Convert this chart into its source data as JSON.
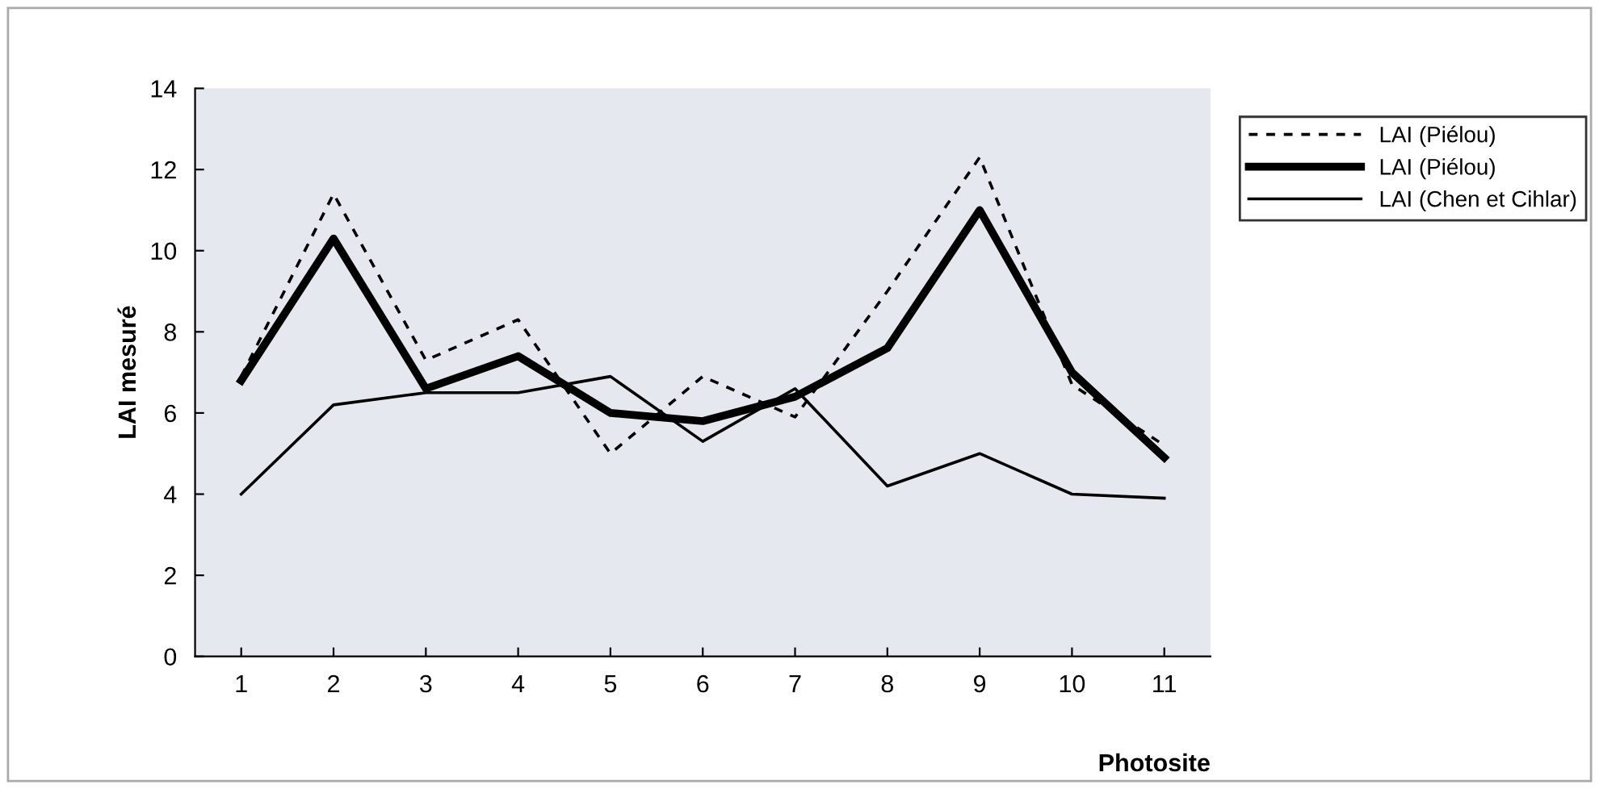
{
  "chart_data": {
    "type": "line",
    "xlabel": "Photosite",
    "ylabel": "LAI mesuré",
    "categories": [
      "1",
      "2",
      "3",
      "4",
      "5",
      "6",
      "7",
      "8",
      "9",
      "10",
      "11"
    ],
    "series": [
      {
        "name": "LAI (Piélou)",
        "color": "#000000",
        "line_style": "dashed",
        "values": [
          6.9,
          11.4,
          7.3,
          8.3,
          5.0,
          6.9,
          5.9,
          9.0,
          12.3,
          6.7,
          5.2
        ]
      },
      {
        "name": "LAI (Piélou)",
        "color": "#000000",
        "line_style": "solid",
        "values": [
          6.8,
          10.3,
          6.6,
          7.4,
          6.0,
          5.8,
          6.4,
          7.6,
          11.0,
          7.0,
          4.9
        ]
      },
      {
        "name": "LAI (Chen et Cihlar)",
        "color": "#000000",
        "line_style": "solid",
        "values": [
          4.0,
          6.2,
          6.5,
          6.5,
          6.9,
          5.3,
          6.6,
          4.2,
          5.0,
          4.0,
          3.9
        ]
      }
    ],
    "ylim": [
      0,
      14
    ],
    "yticks": [
      0,
      2,
      4,
      6,
      8,
      10,
      12,
      14
    ],
    "grid": false,
    "legend": "top right",
    "marker": "none"
  }
}
